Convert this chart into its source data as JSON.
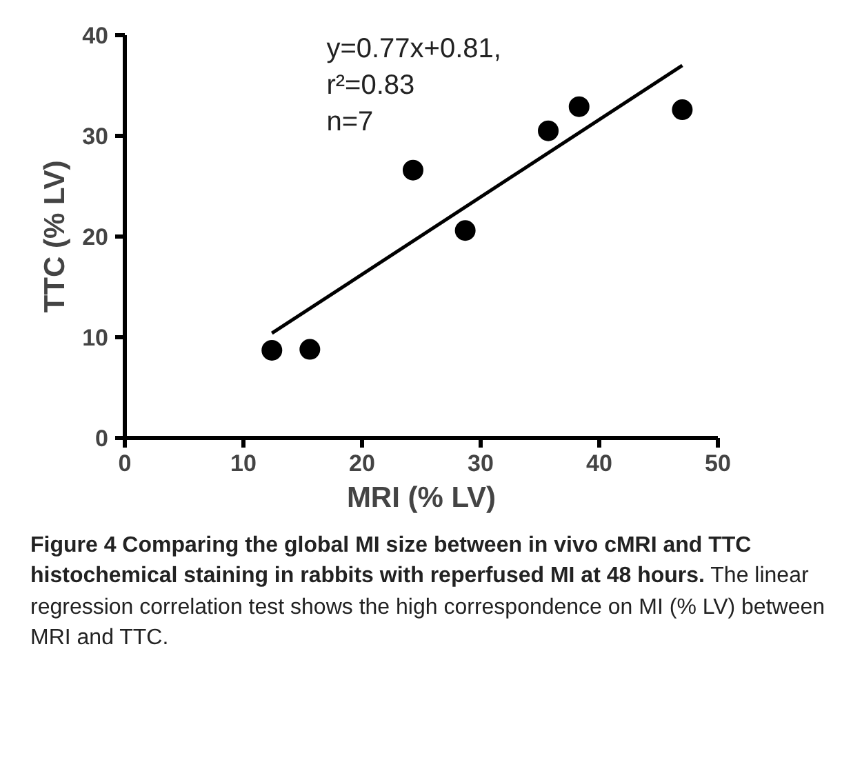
{
  "chart_data": {
    "type": "scatter",
    "xlabel": "MRI (% LV)",
    "ylabel": "TTC (% LV)",
    "xlim": [
      0,
      50
    ],
    "ylim": [
      0,
      40
    ],
    "xticks": [
      0,
      10,
      20,
      30,
      40,
      50
    ],
    "yticks": [
      0,
      10,
      20,
      30,
      40
    ],
    "grid": false,
    "series": [
      {
        "color": "#000000",
        "marker": "circle",
        "x": [
          12.4,
          15.6,
          24.3,
          28.7,
          35.7,
          38.3,
          47.0
        ],
        "values": [
          8.7,
          8.8,
          26.6,
          20.6,
          30.5,
          32.9,
          32.6
        ]
      },
      {
        "type": "line",
        "color": "#000000",
        "x": [
          12.4,
          47.0
        ],
        "values": [
          10.4,
          37.0
        ]
      }
    ],
    "annotations": [
      "y=0.77x+0.81,\nr²=0.83\nn=7",
      "Figure 4 Comparing the global MI size between in vivo cMRI and TTC histochemical staining in rabbits with reperfused MI at 48 hours.",
      "The linear regression correlation test shows the high correspondence on MI (% LV) between MRI and TTC."
    ]
  }
}
